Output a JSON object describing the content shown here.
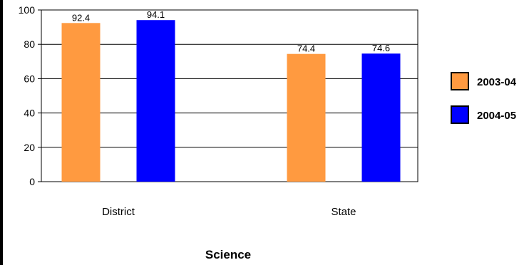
{
  "chart_data": {
    "type": "bar",
    "title": "Science",
    "categories": [
      "District",
      "State"
    ],
    "series": [
      {
        "name": "2003-04",
        "values": [
          92.4,
          74.4
        ],
        "color": "#ff9a40"
      },
      {
        "name": "2004-05",
        "values": [
          94.1,
          74.6
        ],
        "color": "#0000ff"
      }
    ],
    "ylim": [
      0,
      100
    ],
    "yticks": [
      0,
      20,
      40,
      60,
      80,
      100
    ],
    "data_labels": [
      "92.4",
      "94.1",
      "74.4",
      "74.6"
    ],
    "grid": true,
    "legend_position": "right"
  }
}
